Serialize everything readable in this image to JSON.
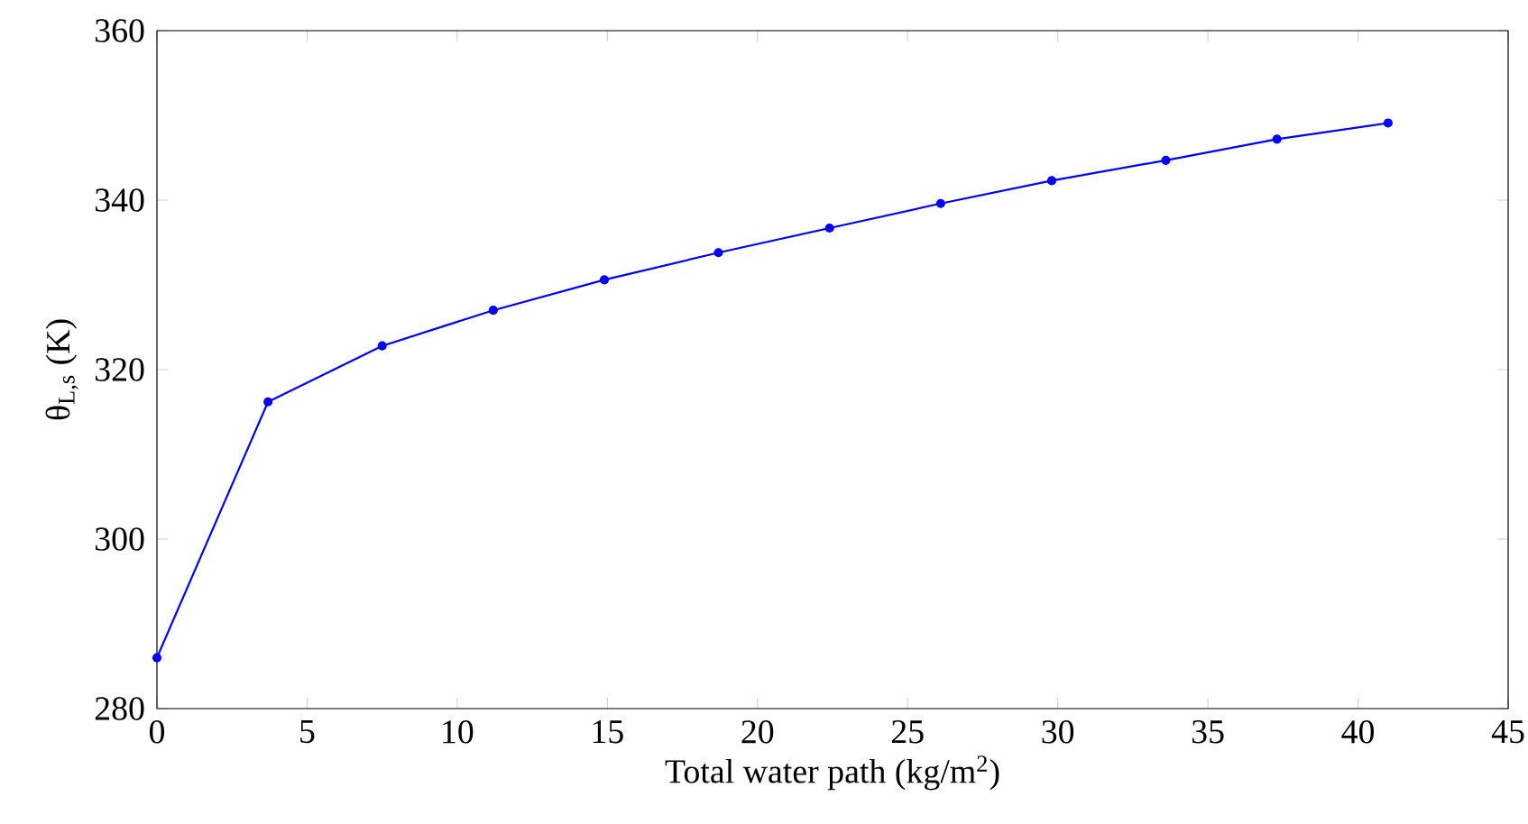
{
  "chart_data": {
    "type": "line",
    "xlabel": "Total water path (kg/m$^{2}$)",
    "ylabel": "θ$_{L,s}$ (K)",
    "x": [
      0,
      3.7,
      7.5,
      11.2,
      14.9,
      18.7,
      22.4,
      26.1,
      29.8,
      33.6,
      37.3,
      41.0
    ],
    "series": [
      {
        "color": "#0000ff",
        "values": [
          286,
          316.2,
          322.8,
          327.0,
          330.6,
          333.8,
          336.7,
          339.6,
          342.3,
          344.7,
          347.2,
          349.1
        ]
      }
    ],
    "xlim": [
      0,
      45
    ],
    "ylim": [
      280,
      360
    ],
    "xticks": [
      0,
      5,
      10,
      15,
      20,
      25,
      30,
      35,
      40,
      45
    ],
    "yticks": [
      280,
      300,
      320,
      340,
      360
    ],
    "marker": "circle",
    "line_style": "solid"
  }
}
